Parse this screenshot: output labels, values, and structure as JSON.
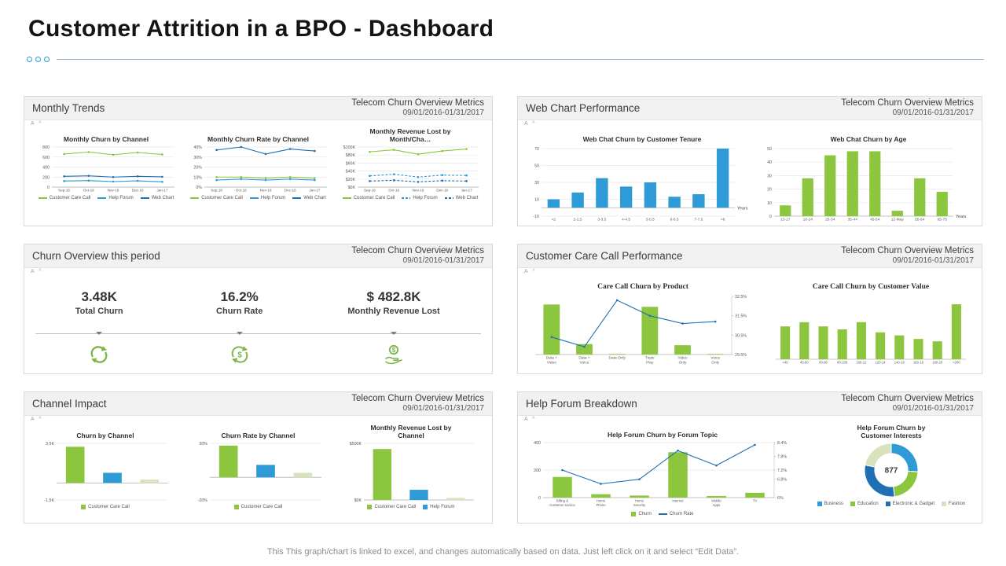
{
  "page": {
    "title": "Customer Attrition in a BPO - Dashboard",
    "footer": "This This graph/chart is linked to excel,  and changes automatically based on data. Just left click on it and select “Edit Data”."
  },
  "meta": {
    "label": "Telecom Churn Overview  Metrics",
    "date_range": "09/01/2016-01/31/2017",
    "slicer": "A  ^"
  },
  "panels": {
    "monthly_trends": {
      "title": "Monthly Trends"
    },
    "web_chart_performance": {
      "title": "Web Chart Performance"
    },
    "churn_overview": {
      "title": "Churn Overview  this period"
    },
    "customer_care_call": {
      "title": "Customer Care Call Performance"
    },
    "channel_impact": {
      "title": "Channel Impact"
    },
    "help_forum": {
      "title": "Help Forum Breakdown"
    }
  },
  "kpis": [
    {
      "value": "3.48K",
      "label": "Total Churn",
      "icon": "churn-cycle-icon"
    },
    {
      "value": "16.2%",
      "label": "Churn Rate",
      "icon": "dollar-cycle-icon"
    },
    {
      "value": "$ 482.8K",
      "label": "Monthly Revenue Lost",
      "icon": "hand-money-icon"
    }
  ],
  "colors": {
    "green": "#8CC63E",
    "pale_green": "#D6E3BC",
    "blue": "#2E9BD6",
    "dark_blue": "#1F6FB4",
    "icon_green": "#7AB648"
  },
  "chart_data": [
    {
      "id": "monthly-churn-by-channel",
      "type": "line",
      "title": "Monthly Churn by Channel",
      "categories": [
        "Sep-16",
        "Oct-16",
        "Nov-16",
        "Dec-16",
        "Jan-17"
      ],
      "ylim": [
        0,
        800
      ],
      "yticks": [
        {
          "v": 0,
          "t": "0"
        },
        {
          "v": 200,
          "t": "200"
        },
        {
          "v": 400,
          "t": "400"
        },
        {
          "v": 600,
          "t": "600"
        },
        {
          "v": 800,
          "t": "800"
        }
      ],
      "xfont": 4.6,
      "series": [
        {
          "name": "Customer Care Call",
          "color": "#8CC63E",
          "values": [
            660,
            700,
            645,
            690,
            650
          ]
        },
        {
          "name": "Help Forum",
          "color": "#2E9BD6",
          "values": [
            120,
            130,
            110,
            125,
            105
          ]
        },
        {
          "name": "Web Chart",
          "color": "#1F6FB4",
          "values": [
            215,
            225,
            200,
            215,
            205
          ]
        }
      ],
      "legend": [
        {
          "label": "Customer Care Call",
          "color": "#8CC63E",
          "shape": "line"
        },
        {
          "label": "Help Forum",
          "color": "#2E9BD6",
          "shape": "line"
        },
        {
          "label": "Web Chart",
          "color": "#1F6FB4",
          "shape": "line"
        }
      ]
    },
    {
      "id": "monthly-churn-rate-by-channel",
      "type": "line",
      "title": "Monthly Churn Rate by Channel",
      "categories": [
        "Sep-16",
        "Oct-16",
        "Nov-16",
        "Dec-16",
        "Jan-17"
      ],
      "ylim": [
        0,
        40
      ],
      "yticks": [
        {
          "v": 0,
          "t": "0%"
        },
        {
          "v": 10,
          "t": "10%"
        },
        {
          "v": 20,
          "t": "20%"
        },
        {
          "v": 30,
          "t": "30%"
        },
        {
          "v": 40,
          "t": "40%"
        }
      ],
      "xfont": 4.6,
      "series": [
        {
          "name": "Customer Care Call",
          "color": "#8CC63E",
          "values": [
            10,
            10,
            9,
            10,
            9
          ]
        },
        {
          "name": "Help Forum",
          "color": "#2E9BD6",
          "values": [
            7,
            8,
            7,
            8,
            7
          ]
        },
        {
          "name": "Web Chart",
          "color": "#1F6FB4",
          "values": [
            37,
            40,
            33,
            38,
            36
          ]
        }
      ],
      "legend": [
        {
          "label": "Customer Care Call",
          "color": "#8CC63E",
          "shape": "line"
        },
        {
          "label": "Help Forum",
          "color": "#2E9BD6",
          "shape": "line"
        },
        {
          "label": "Web Chart",
          "color": "#1F6FB4",
          "shape": "line"
        }
      ]
    },
    {
      "id": "monthly-revenue-lost-by-month",
      "type": "line",
      "title": "Monthly Revenue Lost by Month/Cha…",
      "categories": [
        "Sep-16",
        "Oct-16",
        "Nov-16",
        "Dec-16",
        "Jan-17"
      ],
      "ylim": [
        0,
        100
      ],
      "yticks": [
        {
          "v": 0,
          "t": "$0K"
        },
        {
          "v": 20,
          "t": "$20K"
        },
        {
          "v": 40,
          "t": "$40K"
        },
        {
          "v": 60,
          "t": "$60K"
        },
        {
          "v": 80,
          "t": "$80K"
        },
        {
          "v": 100,
          "t": "$100K"
        }
      ],
      "xfont": 4.6,
      "series": [
        {
          "name": "Customer Care Call",
          "color": "#8CC63E",
          "values": [
            88,
            93,
            82,
            90,
            95
          ]
        },
        {
          "name": "Help Forum",
          "color": "#2E9BD6",
          "dash": true,
          "values": [
            28,
            32,
            25,
            30,
            29
          ]
        },
        {
          "name": "Web Chart",
          "color": "#1F6FB4",
          "dash": true,
          "values": [
            15,
            17,
            13,
            16,
            15
          ]
        }
      ],
      "legend": [
        {
          "label": "Customer Care Call",
          "color": "#8CC63E",
          "shape": "line"
        },
        {
          "label": "Help Forum",
          "color": "#2E9BD6",
          "shape": "dash"
        },
        {
          "label": "Web Chart",
          "color": "#1F6FB4",
          "shape": "dash"
        }
      ]
    },
    {
      "id": "web-chat-churn-by-tenure",
      "type": "bar",
      "title": "Web Chat Churn by Customer Tenure",
      "categories": [
        "<2",
        "2-2.5",
        "3-3.5",
        "4-4.5",
        "5-5.5",
        "6-6.5",
        "7-7.5",
        ">8"
      ],
      "values": [
        10,
        18,
        35,
        25,
        30,
        13,
        16,
        70
      ],
      "color": "#2E9BD6",
      "ylim": [
        -10,
        70
      ],
      "yticks": [
        {
          "v": -10,
          "t": "-10"
        },
        {
          "v": 10,
          "t": "10"
        },
        {
          "v": 30,
          "t": "30"
        },
        {
          "v": 50,
          "t": "50"
        },
        {
          "v": 70,
          "t": "70"
        }
      ],
      "xlabel": "Years",
      "xfont": 4.8
    },
    {
      "id": "web-chat-churn-by-age",
      "type": "bar",
      "title": "Web Chat Churn by Age",
      "categories": [
        "13-17",
        "18-24",
        "25-34",
        "35-44",
        "45-54",
        "12-May",
        "55-64",
        "65-75"
      ],
      "values": [
        8,
        28,
        45,
        48,
        48,
        4,
        28,
        18
      ],
      "color": "#8CC63E",
      "ylim": [
        0,
        50
      ],
      "yticks": [
        {
          "v": 0,
          "t": "0"
        },
        {
          "v": 10,
          "t": "10"
        },
        {
          "v": 20,
          "t": "20"
        },
        {
          "v": 30,
          "t": "30"
        },
        {
          "v": 40,
          "t": "40"
        },
        {
          "v": 50,
          "t": "50"
        }
      ],
      "xlabel": "Years",
      "xfont": 4.8
    },
    {
      "id": "care-call-churn-by-product",
      "type": "combo",
      "title": "Care Call Churn by Product",
      "categories": [
        "Data + Video",
        "Data + Voice",
        "Data Only",
        "Triple Play",
        "Video Only",
        "Voice Only"
      ],
      "ylim": [
        0,
        500
      ],
      "bars": {
        "name": "Churn",
        "color": "#8CC63E",
        "values": [
          430,
          90,
          5,
          410,
          80,
          5
        ]
      },
      "line": {
        "name": "Churn Rate",
        "color": "#1F6FB4",
        "values": [
          30.4,
          29.9,
          32.3,
          31.5,
          31.1,
          31.2
        ]
      },
      "y2lim": [
        29.5,
        32.5
      ],
      "y2ticks": [
        {
          "v": 29.5,
          "t": "29.5%"
        },
        {
          "v": 30.5,
          "t": "30.5%"
        },
        {
          "v": 31.5,
          "t": "31.5%"
        },
        {
          "v": 32.5,
          "t": "32.5%"
        }
      ],
      "wrapx": true,
      "xfont": 4.8
    },
    {
      "id": "care-call-churn-by-customer-value",
      "type": "bar",
      "title": "Care Call Churn by Customer Value",
      "categories": [
        "<40",
        "40-60",
        "60-80",
        "80-100",
        "100-12",
        "120-14",
        "140-16",
        "160-18",
        "180-20",
        ">200"
      ],
      "values": [
        55,
        62,
        55,
        50,
        62,
        45,
        40,
        34,
        30,
        92
      ],
      "color": "#8CC63E",
      "ylim": [
        0,
        100
      ],
      "xfont": 4.2
    },
    {
      "id": "churn-by-channel",
      "type": "bar",
      "title": "Churn by Channel",
      "categories": [
        "Customer Care Call",
        "Help Forum",
        "Web Chart"
      ],
      "values": [
        3.2,
        0.9,
        0.3
      ],
      "colors": [
        "#8CC63E",
        "#2E9BD6",
        "#D6E3BC"
      ],
      "ylim": [
        -1.5,
        3.5
      ],
      "yticks": [
        {
          "v": 3.5,
          "t": "3.5K"
        },
        {
          "v": -1.5,
          "t": "-1.5K"
        }
      ],
      "hidex": true,
      "legend": [
        {
          "label": "Customer Care Call",
          "color": "#8CC63E",
          "shape": "box"
        }
      ]
    },
    {
      "id": "churn-rate-by-channel",
      "type": "bar",
      "title": "Churn Rate by Channel",
      "categories": [
        "Customer Care Call",
        "Help Forum",
        "Web Chart"
      ],
      "values": [
        28,
        11,
        4
      ],
      "colors": [
        "#8CC63E",
        "#2E9BD6",
        "#D6E3BC"
      ],
      "ylim": [
        -20,
        30
      ],
      "yticks": [
        {
          "v": 30,
          "t": "30%"
        },
        {
          "v": -20,
          "t": "-20%"
        }
      ],
      "hidex": true,
      "legend": [
        {
          "label": "Customer Care Call",
          "color": "#8CC63E",
          "shape": "box"
        }
      ]
    },
    {
      "id": "monthly-revenue-lost-by-channel",
      "type": "bar",
      "title": "Monthly Revenue Lost by Channel",
      "categories": [
        "Customer Care Call",
        "Help Forum",
        "Web Chart"
      ],
      "values": [
        450,
        90,
        18
      ],
      "colors": [
        "#8CC63E",
        "#2E9BD6",
        "#D6E3BC"
      ],
      "ylim": [
        0,
        500
      ],
      "yticks": [
        {
          "v": 500,
          "t": "$500K"
        },
        {
          "v": 0,
          "t": "$0K"
        }
      ],
      "hidex": true,
      "legend": [
        {
          "label": "Customer Care Call",
          "color": "#8CC63E",
          "shape": "box"
        },
        {
          "label": "Help Forum",
          "color": "#2E9BD6",
          "shape": "box"
        }
      ]
    },
    {
      "id": "help-forum-churn-by-topic",
      "type": "combo",
      "title": "Help Forum Churn by Forum Topic",
      "categories": [
        "Billing & Customer service",
        "Home Phone",
        "Home Security",
        "Internet",
        "Mobile Apps",
        "TV"
      ],
      "ylim": [
        0,
        400
      ],
      "yticks": [
        {
          "v": 0,
          "t": "0"
        },
        {
          "v": 200,
          "t": "200"
        },
        {
          "v": 400,
          "t": "400"
        }
      ],
      "bars": {
        "name": "Churn",
        "color": "#8CC63E",
        "values": [
          150,
          25,
          15,
          330,
          12,
          35
        ]
      },
      "line": {
        "name": "Churn Rate",
        "color": "#1F6FB4",
        "values": [
          7.2,
          6.6,
          6.8,
          8.05,
          7.4,
          8.3
        ]
      },
      "y2lim": [
        6,
        8.4
      ],
      "y2ticks": [
        {
          "v": 6,
          "t": "6%"
        },
        {
          "v": 6.8,
          "t": "6.8%"
        },
        {
          "v": 7.2,
          "t": "7.2%"
        },
        {
          "v": 7.8,
          "t": "7.8%"
        },
        {
          "v": 8.4,
          "t": "8.4%"
        }
      ],
      "wrapx": true,
      "xfont": 4.2,
      "legend": [
        {
          "label": "Churn",
          "color": "#8CC63E",
          "shape": "box"
        },
        {
          "label": "Churn Rate",
          "color": "#1F6FB4",
          "shape": "line"
        }
      ]
    },
    {
      "id": "help-forum-churn-by-interests",
      "type": "donut",
      "title": "Help Forum Churn by Customer Interests",
      "center_value": "877",
      "segments": [
        {
          "name": "Business",
          "color": "#2E9BD6",
          "value": 26
        },
        {
          "name": "Education",
          "color": "#8CC63E",
          "value": 22
        },
        {
          "name": "Electronic & Gadget",
          "color": "#1F6FB4",
          "value": 30
        },
        {
          "name": "Fashion",
          "color": "#D6E3BC",
          "value": 22
        }
      ],
      "legend": [
        {
          "label": "Business",
          "color": "#2E9BD6",
          "shape": "box"
        },
        {
          "label": "Education",
          "color": "#8CC63E",
          "shape": "box"
        },
        {
          "label": "Electronic & Gadget",
          "color": "#1F6FB4",
          "shape": "box"
        },
        {
          "label": "Fashion",
          "color": "#D6E3BC",
          "shape": "box"
        }
      ]
    }
  ]
}
